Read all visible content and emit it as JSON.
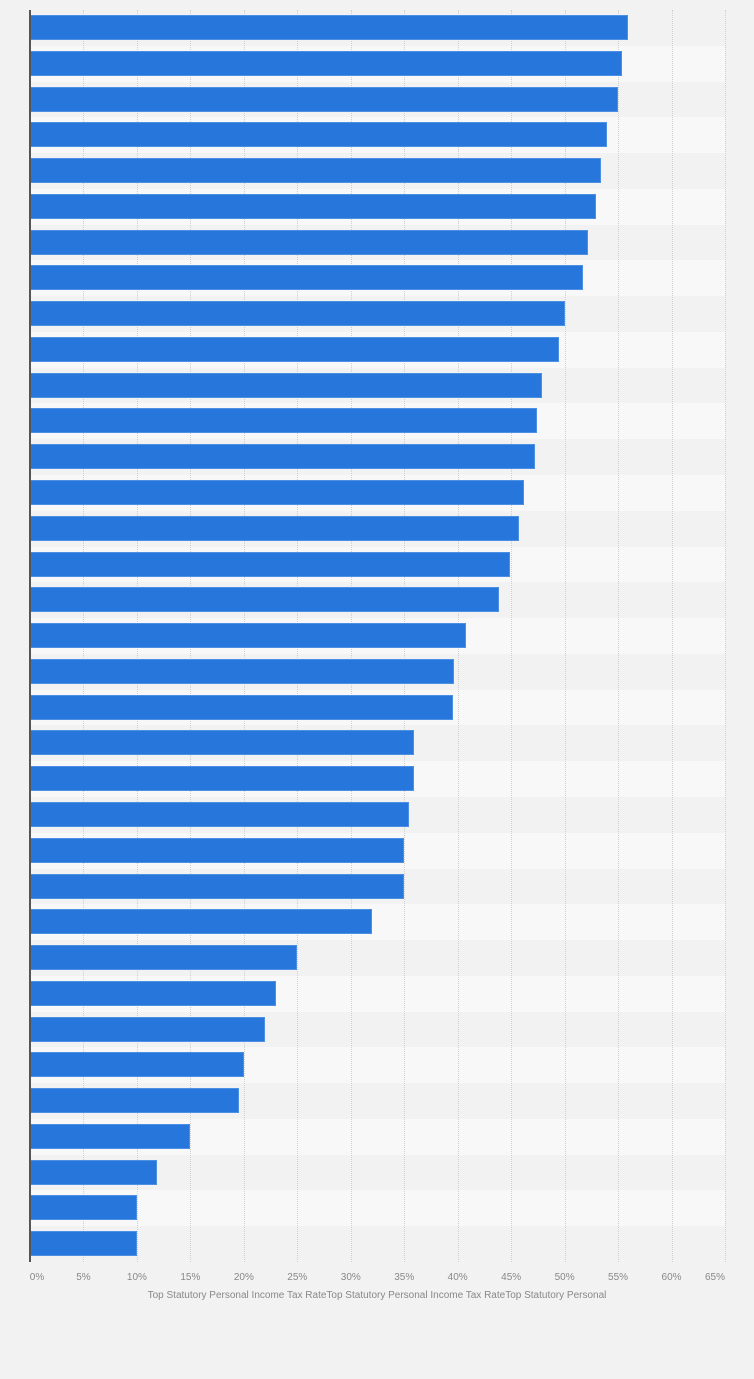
{
  "chart_data": {
    "type": "bar",
    "orientation": "horizontal",
    "title": "",
    "xlabel": "Top Statutory Personal Income Tax RateTop Statutory Personal Income Tax RateTop Statutory Personal",
    "ylabel": "",
    "xlim": [
      0,
      65
    ],
    "grid": true,
    "legend": null,
    "x_tick_labels": [
      "0%",
      "5%",
      "10%",
      "15%",
      "20%",
      "25%",
      "30%",
      "35%",
      "40%",
      "45%",
      "50%",
      "55%",
      "60%",
      "65%"
    ],
    "categories": [
      "",
      "",
      "",
      "",
      "",
      "",
      "",
      "",
      "",
      "",
      "",
      "",
      "",
      "",
      "",
      "",
      "",
      "",
      "",
      "",
      "",
      "",
      "",
      "",
      "",
      "",
      "",
      "",
      "",
      "",
      "",
      "",
      "",
      "",
      ""
    ],
    "values": [
      55.9,
      55.4,
      55.0,
      54.0,
      53.4,
      52.9,
      52.2,
      51.7,
      50.0,
      49.5,
      47.9,
      47.4,
      47.2,
      46.2,
      45.7,
      44.9,
      43.9,
      40.8,
      39.7,
      39.6,
      35.9,
      35.9,
      35.4,
      35.0,
      35.0,
      32.0,
      25.0,
      23.0,
      22.0,
      20.0,
      19.5,
      15.0,
      11.9,
      10.0,
      10.0
    ],
    "unit": "%",
    "bar_color": "#2776db"
  },
  "colors": {
    "background": "#f2f2f2",
    "band_odd": "#f2f2f2",
    "band_even": "#f8f8f8",
    "bar": "#2776db",
    "axis": "#555555",
    "tick_text": "#888888"
  }
}
